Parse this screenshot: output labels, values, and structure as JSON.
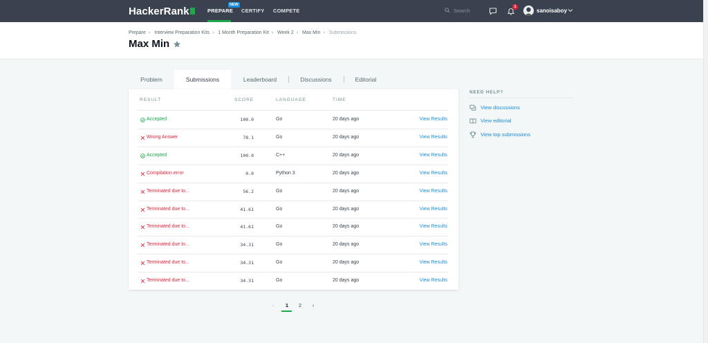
{
  "nav": {
    "logo": "HackerRank",
    "items": [
      "PREPARE",
      "CERTIFY",
      "COMPETE"
    ],
    "new_badge": "NEW",
    "search_placeholder": "Search",
    "notification_count": "1",
    "username": "sanoisaboy"
  },
  "breadcrumb": [
    "Prepare",
    "Interview Preparation Kits",
    "1 Month Preparation Kit",
    "Week 2",
    "Max Min",
    "Submissions"
  ],
  "page_title": "Max Min",
  "tabs": [
    "Problem",
    "Submissions",
    "Leaderboard",
    "Discussions",
    "Editorial"
  ],
  "table": {
    "headers": [
      "RESULT",
      "SCORE",
      "LANGUAGE",
      "TIME"
    ],
    "rows": [
      {
        "result": "Accepted",
        "status": "ok",
        "score": "100.0",
        "language": "Go",
        "time": "20 days ago",
        "action": "View Results"
      },
      {
        "result": "Wrong Answer",
        "status": "fail",
        "score": "78.1",
        "language": "Go",
        "time": "20 days ago",
        "action": "View Results"
      },
      {
        "result": "Accepted",
        "status": "ok",
        "score": "100.0",
        "language": "C++",
        "time": "20 days ago",
        "action": "View Results"
      },
      {
        "result": "Compilation error",
        "status": "fail",
        "score": "0.0",
        "language": "Python 3",
        "time": "20 days ago",
        "action": "View Results"
      },
      {
        "result": "Terminated due to...",
        "status": "fail",
        "score": "56.2",
        "language": "Go",
        "time": "20 days ago",
        "action": "View Results"
      },
      {
        "result": "Terminated due to...",
        "status": "fail",
        "score": "41.61",
        "language": "Go",
        "time": "20 days ago",
        "action": "View Results"
      },
      {
        "result": "Terminated due to...",
        "status": "fail",
        "score": "41.61",
        "language": "Go",
        "time": "20 days ago",
        "action": "View Results"
      },
      {
        "result": "Terminated due to...",
        "status": "fail",
        "score": "34.31",
        "language": "Go",
        "time": "20 days ago",
        "action": "View Results"
      },
      {
        "result": "Terminated due to...",
        "status": "fail",
        "score": "34.31",
        "language": "Go",
        "time": "20 days ago",
        "action": "View Results"
      },
      {
        "result": "Terminated due to...",
        "status": "fail",
        "score": "34.31",
        "language": "Go",
        "time": "20 days ago",
        "action": "View Results"
      }
    ]
  },
  "help": {
    "title": "NEED HELP?",
    "items": [
      {
        "label": "View discussions",
        "icon": "discussion-icon"
      },
      {
        "label": "View editorial",
        "icon": "book-icon"
      },
      {
        "label": "View top submissions",
        "icon": "trophy-icon"
      }
    ]
  },
  "pagination": {
    "prev": "‹",
    "pages": [
      "1",
      "2"
    ],
    "next": "›",
    "current": "1"
  },
  "colors": {
    "accent_green": "#1ba94c",
    "fail_red": "#e3233a",
    "link_blue": "#1a8cdb",
    "nav_bg": "#39424e"
  }
}
